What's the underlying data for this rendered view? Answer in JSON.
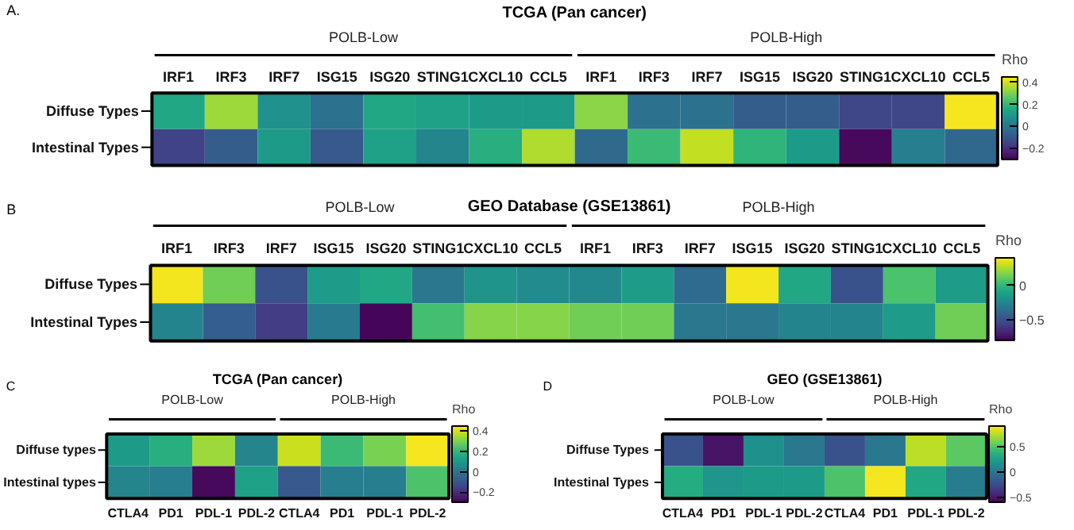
{
  "chart_data": [
    {
      "type": "heatmap",
      "title": "TCGA (Pan cancer)",
      "clabel": "Rho",
      "annotations": [
        "A.",
        "POLB-Low",
        "POLB-High"
      ],
      "categories": [
        "IRF1",
        "IRF3",
        "IRF7",
        "ISG15",
        "ISG20",
        "STING1",
        "CXCL10",
        "CCL5",
        "IRF1",
        "IRF3",
        "IRF7",
        "ISG15",
        "ISG20",
        "STING1",
        "CXCL10",
        "CCL5"
      ],
      "y_categories": [
        "Diffuse Types",
        "Intestinal Types"
      ],
      "cells": [
        [
          0.15,
          0.34,
          0.08,
          -0.02,
          0.15,
          0.13,
          0.11,
          0.11,
          0.32,
          -0.02,
          -0.02,
          -0.08,
          -0.08,
          -0.14,
          -0.14,
          0.44
        ],
        [
          -0.15,
          -0.08,
          0.11,
          -0.09,
          0.13,
          0.04,
          0.17,
          0.36,
          -0.04,
          0.21,
          0.38,
          0.19,
          0.11,
          -0.28,
          0.02,
          -0.05
        ]
      ],
      "clim": [
        -0.3,
        0.45
      ],
      "cticks": [
        -0.2,
        0,
        0.2,
        0.4
      ]
    },
    {
      "type": "heatmap",
      "title": "GEO Database (GSE13861)",
      "clabel": "Rho",
      "annotations": [
        "B",
        "POLB-Low",
        "POLB-High"
      ],
      "categories": [
        "IRF1",
        "IRF3",
        "IRF7",
        "ISG15",
        "ISG20",
        "STING1",
        "CXCL10",
        "CCL5",
        "IRF1",
        "IRF3",
        "IRF7",
        "ISG15",
        "ISG20",
        "STING1",
        "CXCL10",
        "CCL5"
      ],
      "y_categories": [
        "Diffuse Types",
        "Intestinal Types"
      ],
      "cells": [
        [
          0.38,
          0.14,
          -0.5,
          -0.14,
          -0.08,
          -0.32,
          -0.18,
          -0.22,
          -0.24,
          -0.14,
          -0.38,
          0.38,
          -0.08,
          -0.5,
          0.06,
          -0.14
        ],
        [
          -0.26,
          -0.44,
          -0.58,
          -0.3,
          -0.78,
          0.04,
          0.18,
          0.18,
          0.14,
          0.14,
          -0.32,
          -0.32,
          -0.26,
          -0.26,
          -0.14,
          0.14
        ]
      ],
      "clim": [
        -0.8,
        0.4
      ],
      "cticks": [
        -0.5,
        0
      ]
    },
    {
      "type": "heatmap",
      "title": "TCGA (Pan cancer)",
      "clabel": "Rho",
      "annotations": [
        "C",
        "POLB-Low",
        "POLB-High"
      ],
      "categories": [
        "CTLA4",
        "PD1",
        "PDL-1",
        "PDL-2",
        "CTLA4",
        "PD1",
        "PDL-1",
        "PDL-2"
      ],
      "y_categories": [
        "Diffuse types",
        "Intestinal types"
      ],
      "cells": [
        [
          0.11,
          0.17,
          0.34,
          0.04,
          0.39,
          0.21,
          0.3,
          0.44
        ],
        [
          0.04,
          0.02,
          -0.28,
          0.13,
          -0.09,
          0.02,
          0.02,
          0.24
        ]
      ],
      "clim": [
        -0.3,
        0.45
      ],
      "cticks": [
        -0.2,
        0,
        0.2,
        0.4
      ]
    },
    {
      "type": "heatmap",
      "title": "GEO (GSE13861)",
      "clabel": "Rho",
      "annotations": [
        "D",
        "POLB-Low",
        "POLB-High"
      ],
      "categories": [
        "CTLA4",
        "PD1",
        "PDL-1",
        "PDL-2",
        "CTLA4",
        "PD1",
        "PDL-1",
        "PDL-2"
      ],
      "y_categories": [
        "Diffuse  Types",
        "Intestinal  Types"
      ],
      "cells": [
        [
          -0.22,
          -0.52,
          0.15,
          0.0,
          -0.22,
          0.0,
          0.75,
          0.52
        ],
        [
          0.33,
          0.18,
          0.22,
          0.22,
          0.48,
          0.88,
          0.3,
          0.03
        ]
      ],
      "clim": [
        -0.6,
        0.9
      ],
      "cticks": [
        -0.5,
        0,
        0.5
      ]
    }
  ]
}
